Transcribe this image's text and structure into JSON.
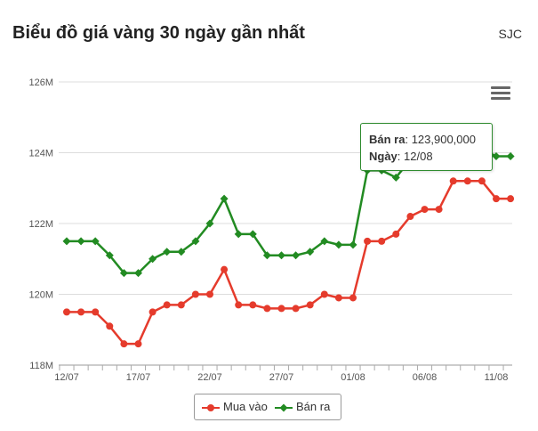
{
  "header": {
    "title": "Biểu đồ giá vàng 30 ngày gần nhất",
    "source": "SJC"
  },
  "menu": {
    "icon": "hamburger-menu-icon"
  },
  "tooltip": {
    "label1": "Bán ra",
    "value1": ": 123,900,000",
    "label2": "Ngày",
    "value2": ": 12/08"
  },
  "chart_data": {
    "type": "line",
    "title": "Biểu đồ giá vàng 30 ngày gần nhất",
    "x": [
      "12/07",
      "13/07",
      "14/07",
      "15/07",
      "16/07",
      "17/07",
      "18/07",
      "19/07",
      "20/07",
      "21/07",
      "22/07",
      "23/07",
      "24/07",
      "25/07",
      "26/07",
      "27/07",
      "28/07",
      "29/07",
      "30/07",
      "31/07",
      "01/08",
      "02/08",
      "03/08",
      "04/08",
      "05/08",
      "06/08",
      "07/08",
      "08/08",
      "09/08",
      "10/08",
      "11/08",
      "12/08"
    ],
    "x_tick_labels": [
      "12/07",
      "17/07",
      "22/07",
      "27/07",
      "01/08",
      "06/08",
      "11/08"
    ],
    "y_tick_labels": [
      "118M",
      "120M",
      "122M",
      "124M",
      "126M"
    ],
    "ylim": [
      118,
      126
    ],
    "y_unit": "M",
    "grid": true,
    "legend_position": "bottom-center",
    "series": [
      {
        "name": "Mua vào",
        "color": "#e53b2c",
        "values": [
          119.5,
          119.5,
          119.5,
          119.1,
          118.6,
          118.6,
          119.5,
          119.7,
          119.7,
          120.0,
          120.0,
          120.7,
          119.7,
          119.7,
          119.6,
          119.6,
          119.6,
          119.7,
          120.0,
          119.9,
          119.9,
          121.5,
          121.5,
          121.7,
          122.2,
          122.4,
          122.4,
          123.2,
          123.2,
          123.2,
          122.7,
          122.7
        ]
      },
      {
        "name": "Bán ra",
        "color": "#228b22",
        "values": [
          121.5,
          121.5,
          121.5,
          121.1,
          120.6,
          120.6,
          121.0,
          121.2,
          121.2,
          121.5,
          122.0,
          122.7,
          121.7,
          121.7,
          121.1,
          121.1,
          121.1,
          121.2,
          121.5,
          121.4,
          121.4,
          123.5,
          123.5,
          123.3,
          123.8,
          124.0,
          124.0,
          124.1,
          124.1,
          124.1,
          123.9,
          123.9
        ]
      }
    ]
  }
}
